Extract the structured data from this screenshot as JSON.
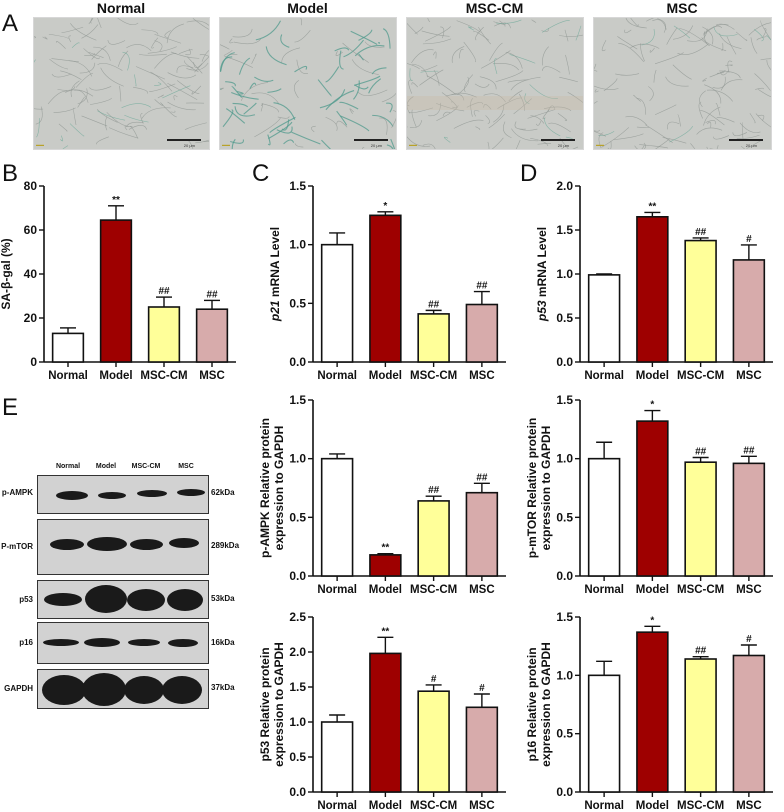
{
  "figure": {
    "panel_letters": [
      "A",
      "B",
      "C",
      "D",
      "E"
    ]
  },
  "panel_a": {
    "letter": "A",
    "micrographs": [
      {
        "title": "Normal",
        "scale_bar": "20 μm",
        "stain_intensity": "low"
      },
      {
        "title": "Model",
        "scale_bar": "20 μm",
        "stain_intensity": "high"
      },
      {
        "title": "MSC-CM",
        "scale_bar": "20 μm",
        "stain_intensity": "low"
      },
      {
        "title": "MSC",
        "scale_bar": "20 μm",
        "stain_intensity": "low"
      }
    ]
  },
  "panel_e_blot": {
    "letter": "E",
    "lanes": [
      "Normal",
      "Model",
      "MSC-CM",
      "MSC"
    ],
    "rows": [
      {
        "label": "p-AMPK",
        "kda": "62kDa"
      },
      {
        "label": "P-mTOR",
        "kda": "289kDa"
      },
      {
        "label": "p53",
        "kda": "53kDa"
      },
      {
        "label": "p16",
        "kda": "16kDa"
      },
      {
        "label": "GAPDH",
        "kda": "37kDa"
      }
    ]
  },
  "colors": {
    "Normal": "#ffffff",
    "Model": "#9e0000",
    "MSC-CM": "#ffff99",
    "MSC": "#d7abab",
    "axis": "#111111"
  },
  "chart_data": [
    {
      "id": "B",
      "type": "bar",
      "title": "",
      "ylabel": "SA-β-gal (%)",
      "ylabel_italic_prefix": "",
      "categories": [
        "Normal",
        "Model",
        "MSC-CM",
        "MSC"
      ],
      "values": [
        13,
        64.5,
        25,
        24
      ],
      "errors": [
        2.5,
        6.5,
        4.5,
        4
      ],
      "significance": [
        "",
        "**",
        "##",
        "##"
      ],
      "ylim": [
        0,
        80
      ],
      "yticks": [
        0,
        20,
        40,
        60,
        80
      ],
      "grid": false
    },
    {
      "id": "C",
      "type": "bar",
      "title": "",
      "ylabel": " mRNA Level",
      "ylabel_italic_prefix": "p21",
      "categories": [
        "Normal",
        "Model",
        "MSC-CM",
        "MSC"
      ],
      "values": [
        1.0,
        1.25,
        0.41,
        0.49
      ],
      "errors": [
        0.1,
        0.03,
        0.03,
        0.11
      ],
      "significance": [
        "",
        "*",
        "##",
        "##"
      ],
      "ylim": [
        0,
        1.5
      ],
      "yticks": [
        0.0,
        0.5,
        1.0,
        1.5
      ],
      "grid": false
    },
    {
      "id": "D",
      "type": "bar",
      "title": "",
      "ylabel": " mRNA Level",
      "ylabel_italic_prefix": "p53",
      "categories": [
        "Normal",
        "Model",
        "MSC-CM",
        "MSC"
      ],
      "values": [
        0.99,
        1.65,
        1.38,
        1.16
      ],
      "errors": [
        0.01,
        0.05,
        0.03,
        0.17
      ],
      "significance": [
        "",
        "**",
        "##",
        "#"
      ],
      "ylim": [
        0,
        2.0
      ],
      "yticks": [
        0.0,
        0.5,
        1.0,
        1.5,
        2.0
      ],
      "grid": false
    },
    {
      "id": "E-pAMPK",
      "type": "bar",
      "title": "",
      "ylabel": "p-AMPK Relative protein",
      "ylabel2": "expression to GAPDH",
      "ylabel_italic_prefix": "",
      "categories": [
        "Normal",
        "Model",
        "MSC-CM",
        "MSC"
      ],
      "values": [
        1.0,
        0.18,
        0.64,
        0.71
      ],
      "errors": [
        0.04,
        0.01,
        0.04,
        0.08
      ],
      "significance": [
        "",
        "**",
        "##",
        "##"
      ],
      "ylim": [
        0,
        1.5
      ],
      "yticks": [
        0.0,
        0.5,
        1.0,
        1.5
      ],
      "grid": false
    },
    {
      "id": "E-pmTOR",
      "type": "bar",
      "title": "",
      "ylabel": "p-mTOR Relative protein",
      "ylabel2": "expression to GAPDH",
      "ylabel_italic_prefix": "",
      "categories": [
        "Normal",
        "Model",
        "MSC-CM",
        "MSC"
      ],
      "values": [
        1.0,
        1.32,
        0.97,
        0.96
      ],
      "errors": [
        0.14,
        0.09,
        0.04,
        0.06
      ],
      "significance": [
        "",
        "*",
        "##",
        "##"
      ],
      "ylim": [
        0,
        1.5
      ],
      "yticks": [
        0.0,
        0.5,
        1.0,
        1.5
      ],
      "grid": false
    },
    {
      "id": "E-p53",
      "type": "bar",
      "title": "",
      "ylabel": "p53 Relative protein",
      "ylabel2": "expression to GAPDH",
      "ylabel_italic_prefix": "",
      "categories": [
        "Normal",
        "Model",
        "MSC-CM",
        "MSC"
      ],
      "values": [
        1.0,
        1.98,
        1.44,
        1.21
      ],
      "errors": [
        0.1,
        0.23,
        0.09,
        0.19
      ],
      "significance": [
        "",
        "**",
        "#",
        "#"
      ],
      "ylim": [
        0,
        2.5
      ],
      "yticks": [
        0.0,
        0.5,
        1.0,
        1.5,
        2.0,
        2.5
      ],
      "grid": false
    },
    {
      "id": "E-p16",
      "type": "bar",
      "title": "",
      "ylabel": "p16 Relative protein",
      "ylabel2": "expression to GAPDH",
      "ylabel_italic_prefix": "",
      "categories": [
        "Normal",
        "Model",
        "MSC-CM",
        "MSC"
      ],
      "values": [
        1.0,
        1.37,
        1.14,
        1.17
      ],
      "errors": [
        0.12,
        0.05,
        0.02,
        0.09
      ],
      "significance": [
        "",
        "*",
        "##",
        "#"
      ],
      "ylim": [
        0,
        1.5
      ],
      "yticks": [
        0.0,
        0.5,
        1.0,
        1.5
      ],
      "grid": false
    }
  ]
}
